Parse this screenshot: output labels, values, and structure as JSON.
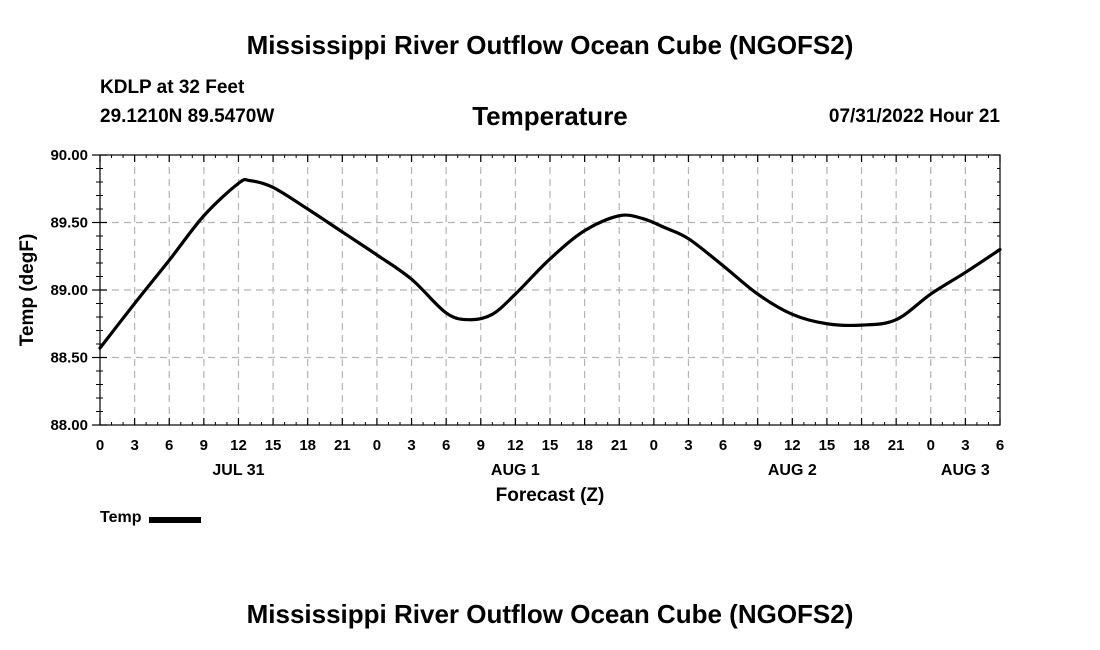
{
  "header": {
    "title": "Mississippi River Outflow Ocean Cube (NGOFS2)",
    "station": "KDLP at 32 Feet",
    "coords": "29.1210N  89.5470W",
    "chart_title": "Temperature",
    "date": "07/31/2022 Hour 21"
  },
  "footer": {
    "title": "Mississippi River Outflow Ocean Cube (NGOFS2)"
  },
  "legend": {
    "label": "Temp",
    "color": "#000000"
  },
  "chart_data": {
    "type": "line",
    "title": "Temperature",
    "xlabel": "Forecast (Z)",
    "ylabel": "Temp (degF)",
    "ylim": [
      88.0,
      90.0
    ],
    "xlim": [
      0,
      78
    ],
    "yticks": [
      "88.00",
      "88.50",
      "89.00",
      "89.50",
      "90.00"
    ],
    "ytick_values": [
      88.0,
      88.5,
      89.0,
      89.5,
      90.0
    ],
    "xtick_labels": [
      "0",
      "3",
      "6",
      "9",
      "12",
      "15",
      "18",
      "21",
      "0",
      "3",
      "6",
      "9",
      "12",
      "15",
      "18",
      "21",
      "0",
      "3",
      "6",
      "9",
      "12",
      "15",
      "18",
      "21",
      "0",
      "3",
      "6"
    ],
    "day_labels": [
      {
        "label": "JUL 31",
        "hour": 12
      },
      {
        "label": "AUG 1",
        "hour": 36
      },
      {
        "label": "AUG 2",
        "hour": 60
      },
      {
        "label": "AUG 3",
        "hour": 75
      }
    ],
    "grid": true,
    "series": [
      {
        "name": "Temp",
        "color": "#000000",
        "x": [
          0,
          3,
          6,
          9,
          12,
          13,
          15,
          18,
          21,
          24,
          27,
          30,
          32,
          34,
          36,
          39,
          42,
          45,
          47,
          49,
          51,
          54,
          57,
          60,
          63,
          66,
          69,
          72,
          75,
          78
        ],
        "values": [
          88.57,
          88.9,
          89.22,
          89.55,
          89.79,
          89.81,
          89.76,
          89.6,
          89.43,
          89.26,
          89.08,
          88.83,
          88.78,
          88.82,
          88.97,
          89.23,
          89.44,
          89.55,
          89.53,
          89.46,
          89.38,
          89.18,
          88.97,
          88.82,
          88.75,
          88.74,
          88.78,
          88.97,
          89.13,
          89.3
        ]
      }
    ]
  }
}
